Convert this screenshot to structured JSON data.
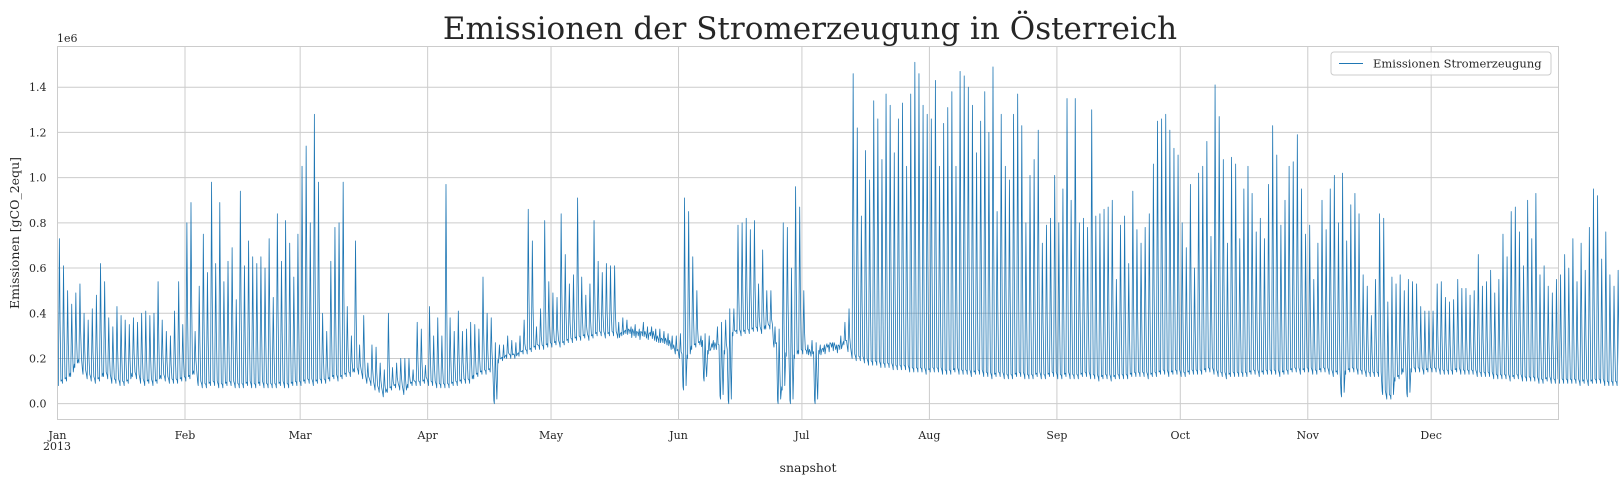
{
  "chart_data": {
    "type": "line",
    "title": "Emissionen der Stromerzeugung in Österreich",
    "xlabel": "snapshot",
    "ylabel": "Emissionen [gCO_2equ]",
    "y_offset_label": "1e6",
    "year_label": "2013",
    "x_range": [
      "2013-01-01",
      "2013-12-31"
    ],
    "ylim": [
      -0.07,
      1.58
    ],
    "y_multiplier": 1000000,
    "y_ticks": [
      0.0,
      0.2,
      0.4,
      0.6,
      0.8,
      1.0,
      1.2,
      1.4
    ],
    "y_tick_labels": [
      "0.0",
      "0.2",
      "0.4",
      "0.6",
      "0.8",
      "1.0",
      "1.2",
      "1.4"
    ],
    "x_ticks": [
      {
        "date": "2013-01-01",
        "label": "Jan"
      },
      {
        "date": "2013-02-01",
        "label": "Feb"
      },
      {
        "date": "2013-03-01",
        "label": "Mar"
      },
      {
        "date": "2013-04-01",
        "label": "Apr"
      },
      {
        "date": "2013-05-01",
        "label": "May"
      },
      {
        "date": "2013-06-01",
        "label": "Jun"
      },
      {
        "date": "2013-07-01",
        "label": "Jul"
      },
      {
        "date": "2013-08-01",
        "label": "Aug"
      },
      {
        "date": "2013-09-01",
        "label": "Sep"
      },
      {
        "date": "2013-10-01",
        "label": "Oct"
      },
      {
        "date": "2013-11-01",
        "label": "Nov"
      },
      {
        "date": "2013-12-01",
        "label": "Dec"
      }
    ],
    "grid": true,
    "legend_position": "top-right",
    "series": [
      {
        "name": "Emissionen Stromerzeugung",
        "color": "#1f77b4",
        "resolution": "daily envelope (min/max per day), values in 1e6 gCO2equ",
        "daily_min": [
          0.08,
          0.09,
          0.1,
          0.12,
          0.16,
          0.18,
          0.13,
          0.11,
          0.1,
          0.09,
          0.1,
          0.12,
          0.11,
          0.09,
          0.09,
          0.08,
          0.08,
          0.09,
          0.12,
          0.11,
          0.09,
          0.08,
          0.09,
          0.08,
          0.09,
          0.11,
          0.1,
          0.09,
          0.09,
          0.09,
          0.1,
          0.1,
          0.11,
          0.13,
          0.08,
          0.07,
          0.07,
          0.08,
          0.08,
          0.07,
          0.07,
          0.08,
          0.08,
          0.07,
          0.07,
          0.07,
          0.08,
          0.07,
          0.07,
          0.08,
          0.07,
          0.07,
          0.07,
          0.07,
          0.08,
          0.07,
          0.07,
          0.08,
          0.08,
          0.08,
          0.09,
          0.09,
          0.08,
          0.09,
          0.09,
          0.09,
          0.1,
          0.11,
          0.1,
          0.11,
          0.12,
          0.12,
          0.14,
          0.13,
          0.11,
          0.09,
          0.08,
          0.06,
          0.05,
          0.03,
          0.05,
          0.06,
          0.07,
          0.06,
          0.04,
          0.07,
          0.08,
          0.08,
          0.08,
          0.09,
          0.08,
          0.08,
          0.07,
          0.07,
          0.07,
          0.07,
          0.08,
          0.08,
          0.09,
          0.09,
          0.09,
          0.11,
          0.12,
          0.13,
          0.13,
          0.14,
          0.0,
          0.18,
          0.19,
          0.2,
          0.2,
          0.2,
          0.21,
          0.22,
          0.22,
          0.23,
          0.24,
          0.24,
          0.24,
          0.25,
          0.25,
          0.26,
          0.25,
          0.26,
          0.27,
          0.27,
          0.28,
          0.28,
          0.29,
          0.28,
          0.29,
          0.3,
          0.3,
          0.29,
          0.3,
          0.3,
          0.29,
          0.3,
          0.31,
          0.31,
          0.3,
          0.3,
          0.3,
          0.29,
          0.3,
          0.28,
          0.27,
          0.27,
          0.26,
          0.24,
          0.22,
          0.2,
          0.06,
          0.2,
          0.24,
          0.25,
          0.26,
          0.1,
          0.22,
          0.25,
          0.24,
          0.02,
          0.22,
          0.0,
          0.3,
          0.31,
          0.3,
          0.31,
          0.31,
          0.32,
          0.32,
          0.31,
          0.33,
          0.33,
          0.25,
          0.0,
          0.06,
          0.21,
          0.0,
          0.2,
          0.22,
          0.22,
          0.22,
          0.21,
          0.0,
          0.22,
          0.23,
          0.25,
          0.25,
          0.24,
          0.24,
          0.26,
          0.23,
          0.2,
          0.19,
          0.19,
          0.18,
          0.17,
          0.17,
          0.17,
          0.16,
          0.16,
          0.16,
          0.15,
          0.15,
          0.15,
          0.15,
          0.14,
          0.14,
          0.14,
          0.14,
          0.13,
          0.14,
          0.14,
          0.14,
          0.13,
          0.13,
          0.13,
          0.14,
          0.13,
          0.13,
          0.13,
          0.12,
          0.13,
          0.13,
          0.12,
          0.12,
          0.11,
          0.12,
          0.12,
          0.11,
          0.11,
          0.11,
          0.12,
          0.12,
          0.11,
          0.11,
          0.11,
          0.12,
          0.11,
          0.11,
          0.12,
          0.12,
          0.11,
          0.11,
          0.12,
          0.11,
          0.11,
          0.11,
          0.12,
          0.12,
          0.11,
          0.11,
          0.1,
          0.11,
          0.11,
          0.1,
          0.11,
          0.11,
          0.11,
          0.11,
          0.12,
          0.12,
          0.12,
          0.12,
          0.11,
          0.12,
          0.12,
          0.13,
          0.13,
          0.12,
          0.13,
          0.13,
          0.12,
          0.12,
          0.13,
          0.13,
          0.13,
          0.13,
          0.14,
          0.14,
          0.13,
          0.12,
          0.12,
          0.11,
          0.12,
          0.12,
          0.12,
          0.12,
          0.12,
          0.13,
          0.13,
          0.12,
          0.13,
          0.13,
          0.13,
          0.13,
          0.12,
          0.13,
          0.13,
          0.14,
          0.14,
          0.13,
          0.14,
          0.14,
          0.13,
          0.13,
          0.14,
          0.14,
          0.13,
          0.12,
          0.13,
          0.03,
          0.13,
          0.14,
          0.14,
          0.13,
          0.13,
          0.12,
          0.12,
          0.12,
          0.12,
          0.04,
          0.02,
          0.02,
          0.1,
          0.11,
          0.14,
          0.03,
          0.14,
          0.14,
          0.14,
          0.13,
          0.14,
          0.14,
          0.14,
          0.13,
          0.13,
          0.13,
          0.13,
          0.14,
          0.13,
          0.13,
          0.13,
          0.13,
          0.12,
          0.12,
          0.12,
          0.12,
          0.11,
          0.11,
          0.11,
          0.11,
          0.1,
          0.11,
          0.11,
          0.1,
          0.1,
          0.1,
          0.1,
          0.09,
          0.09,
          0.1,
          0.09,
          0.09,
          0.09,
          0.09,
          0.09,
          0.09,
          0.09,
          0.08,
          0.09,
          0.08,
          0.09,
          0.09,
          0.09,
          0.08,
          0.08,
          0.08,
          0.08,
          0.09,
          0.09,
          0.08,
          0.08,
          0.08,
          0.09,
          0.08,
          0.08,
          0.08,
          0.08,
          0.08,
          0.04,
          0.08,
          0.09,
          0.09
        ],
        "daily_max": [
          0.73,
          0.61,
          0.5,
          0.44,
          0.49,
          0.53,
          0.4,
          0.37,
          0.42,
          0.48,
          0.62,
          0.54,
          0.38,
          0.34,
          0.43,
          0.39,
          0.37,
          0.35,
          0.38,
          0.36,
          0.4,
          0.41,
          0.39,
          0.4,
          0.54,
          0.37,
          0.32,
          0.3,
          0.41,
          0.54,
          0.35,
          0.8,
          0.89,
          0.32,
          0.52,
          0.75,
          0.58,
          0.98,
          0.62,
          0.89,
          0.54,
          0.63,
          0.69,
          0.46,
          0.94,
          0.61,
          0.72,
          0.65,
          0.62,
          0.65,
          0.6,
          0.73,
          0.47,
          0.84,
          0.63,
          0.81,
          0.71,
          0.56,
          0.75,
          1.05,
          1.14,
          0.8,
          1.28,
          0.98,
          0.4,
          0.32,
          0.63,
          0.78,
          0.8,
          0.98,
          0.43,
          0.3,
          0.72,
          0.26,
          0.39,
          0.18,
          0.26,
          0.25,
          0.18,
          0.15,
          0.4,
          0.16,
          0.18,
          0.2,
          0.2,
          0.2,
          0.15,
          0.36,
          0.33,
          0.17,
          0.43,
          0.3,
          0.38,
          0.3,
          0.97,
          0.38,
          0.32,
          0.41,
          0.32,
          0.33,
          0.36,
          0.35,
          0.33,
          0.56,
          0.4,
          0.38,
          0.27,
          0.26,
          0.26,
          0.3,
          0.28,
          0.27,
          0.3,
          0.37,
          0.86,
          0.72,
          0.34,
          0.42,
          0.81,
          0.54,
          0.49,
          0.47,
          0.84,
          0.66,
          0.53,
          0.57,
          0.91,
          0.56,
          0.48,
          0.53,
          0.81,
          0.63,
          0.58,
          0.62,
          0.61,
          0.61,
          0.36,
          0.38,
          0.37,
          0.34,
          0.35,
          0.33,
          0.36,
          0.34,
          0.34,
          0.33,
          0.33,
          0.32,
          0.31,
          0.3,
          0.3,
          0.31,
          0.91,
          0.85,
          0.65,
          0.5,
          0.3,
          0.31,
          0.3,
          0.28,
          0.34,
          0.36,
          0.37,
          0.42,
          0.42,
          0.79,
          0.8,
          0.82,
          0.77,
          0.81,
          0.53,
          0.68,
          0.5,
          0.5,
          0.34,
          0.33,
          0.8,
          0.78,
          0.6,
          0.96,
          0.87,
          0.5,
          0.26,
          0.28,
          0.27,
          0.26,
          0.26,
          0.26,
          0.27,
          0.26,
          0.3,
          0.36,
          0.42,
          1.46,
          1.22,
          0.83,
          1.12,
          0.99,
          1.34,
          1.26,
          1.08,
          1.37,
          1.32,
          1.11,
          1.26,
          1.33,
          1.05,
          1.37,
          1.51,
          1.46,
          1.32,
          1.28,
          1.26,
          1.43,
          1.05,
          1.24,
          1.31,
          1.38,
          1.05,
          1.47,
          1.45,
          1.4,
          1.32,
          1.11,
          1.25,
          1.38,
          1.2,
          1.49,
          0.85,
          1.28,
          1.05,
          0.99,
          1.28,
          1.37,
          1.23,
          0.8,
          1.01,
          1.08,
          1.21,
          0.71,
          0.79,
          0.82,
          1.01,
          0.8,
          0.95,
          1.35,
          0.9,
          1.35,
          0.8,
          0.82,
          0.78,
          1.3,
          0.83,
          0.84,
          0.86,
          0.87,
          0.9,
          0.55,
          0.79,
          0.83,
          0.62,
          0.94,
          0.77,
          0.71,
          0.78,
          0.84,
          1.06,
          1.25,
          1.26,
          1.28,
          1.21,
          1.13,
          1.1,
          0.8,
          0.69,
          0.97,
          0.6,
          1.02,
          1.05,
          1.16,
          0.74,
          1.41,
          1.27,
          1.08,
          0.71,
          1.09,
          1.06,
          0.73,
          0.95,
          1.05,
          0.93,
          0.76,
          0.82,
          0.73,
          0.97,
          1.23,
          1.1,
          0.79,
          0.9,
          1.05,
          1.07,
          1.19,
          0.95,
          0.75,
          0.79,
          0.55,
          0.71,
          0.9,
          0.77,
          0.95,
          1.01,
          0.8,
          1.02,
          0.72,
          0.88,
          0.93,
          0.84,
          0.57,
          0.52,
          0.39,
          0.55,
          0.84,
          0.82,
          0.45,
          0.56,
          0.53,
          0.57,
          0.5,
          0.55,
          0.54,
          0.53,
          0.43,
          0.41,
          0.41,
          0.41,
          0.53,
          0.54,
          0.47,
          0.45,
          0.46,
          0.55,
          0.51,
          0.51,
          0.48,
          0.5,
          0.66,
          0.52,
          0.54,
          0.59,
          0.49,
          0.55,
          0.75,
          0.65,
          0.85,
          0.87,
          0.76,
          0.61,
          0.9,
          0.73,
          0.93,
          0.57,
          0.61,
          0.52,
          0.49,
          0.55,
          0.57,
          0.66,
          0.6,
          0.73,
          0.54,
          0.71,
          0.59,
          0.78,
          0.95,
          0.92,
          0.64,
          0.76,
          0.57,
          0.52,
          0.59,
          0.88,
          0.72,
          0.57,
          0.51,
          0.49,
          0.54,
          0.75,
          0.57,
          0.35,
          0.71,
          0.74,
          0.46
        ]
      }
    ]
  }
}
